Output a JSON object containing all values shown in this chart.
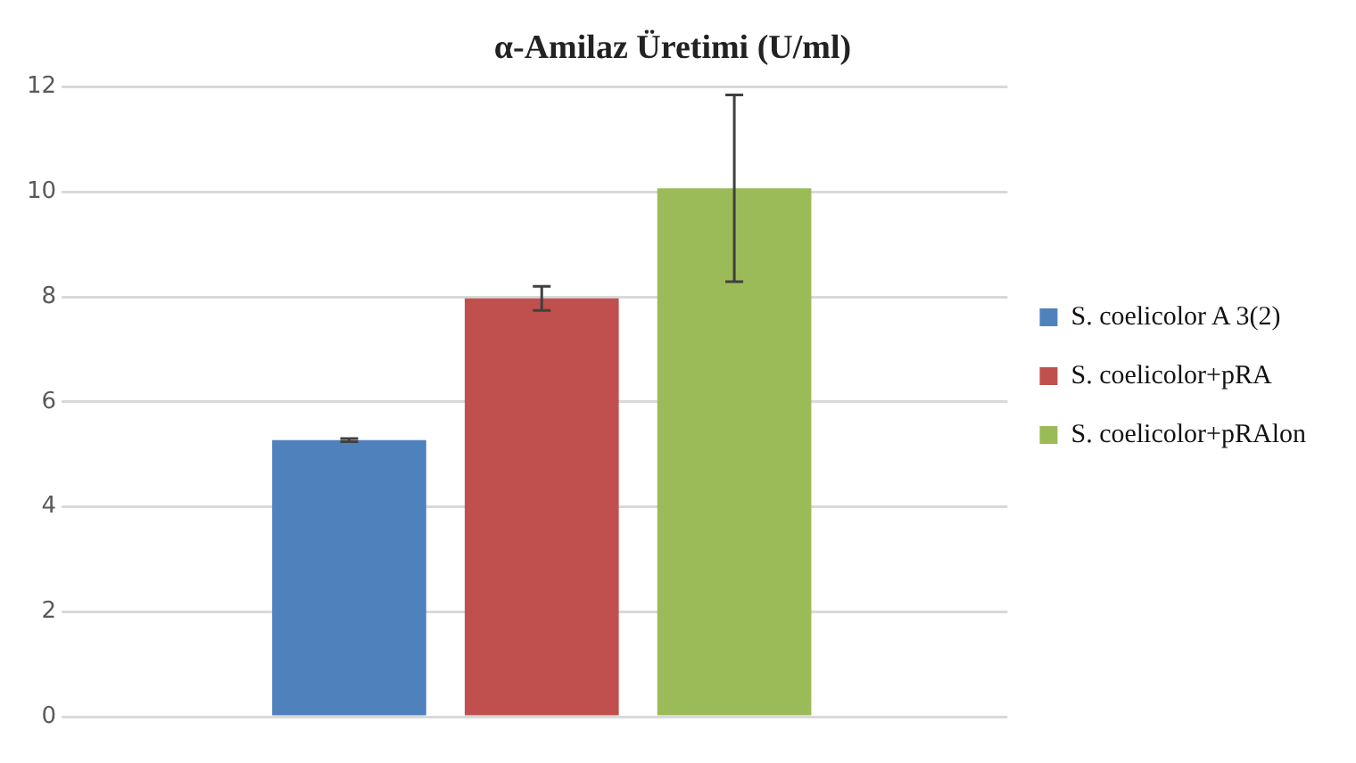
{
  "chart_data": {
    "type": "bar",
    "title": "α-Amilaz Üretimi (U/ml)",
    "categories": [
      null
    ],
    "series": [
      {
        "name": "S. coelicolor A 3(2)",
        "color": "#4f81bd",
        "values": [
          5.27
        ],
        "errors": [
          0.03
        ]
      },
      {
        "name": "S. coelicolor+pRA",
        "color": "#c0504d",
        "values": [
          7.97
        ],
        "errors": [
          0.23
        ]
      },
      {
        "name": "S. coelicolor+pRAlon",
        "color": "#9bbb59",
        "values": [
          10.07
        ],
        "errors": [
          1.78
        ]
      }
    ],
    "ylim": [
      0,
      12
    ],
    "yticks": [
      0,
      2,
      4,
      6,
      8,
      10,
      12
    ],
    "grid": "y",
    "legend": "right"
  }
}
